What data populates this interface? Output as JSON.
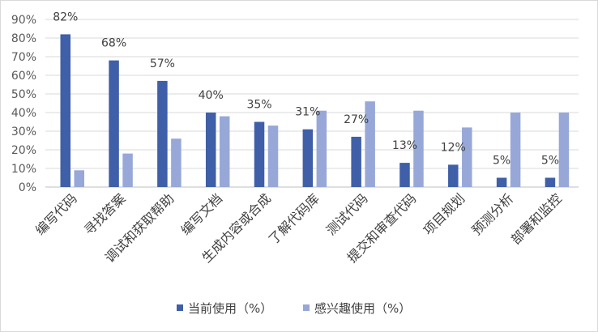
{
  "chart_data": {
    "type": "bar",
    "categories": [
      "编写代码",
      "寻找答案",
      "调试和获取帮助",
      "编写文档",
      "生成内容或合成",
      "了解代码库",
      "测试代码",
      "提交和审查代码",
      "项目规划",
      "预测分析",
      "部署和监控"
    ],
    "series": [
      {
        "name": "当前使用（%）",
        "values": [
          82,
          68,
          57,
          40,
          35,
          31,
          27,
          13,
          12,
          5,
          5
        ],
        "color": "#3f5fa8"
      },
      {
        "name": "感兴趣使用（%）",
        "values": [
          9,
          18,
          26,
          38,
          33,
          41,
          46,
          41,
          32,
          40,
          40
        ],
        "color": "#97a8d8"
      }
    ],
    "data_labels": [
      "82%",
      "68%",
      "57%",
      "40%",
      "35%",
      "31%",
      "27%",
      "13%",
      "12%",
      "5%",
      "5%"
    ],
    "y_ticks": [
      "0%",
      "10%",
      "20%",
      "30%",
      "40%",
      "50%",
      "60%",
      "70%",
      "80%",
      "90%"
    ],
    "ylim": [
      0,
      90
    ],
    "grid": true,
    "legend_position": "bottom"
  }
}
